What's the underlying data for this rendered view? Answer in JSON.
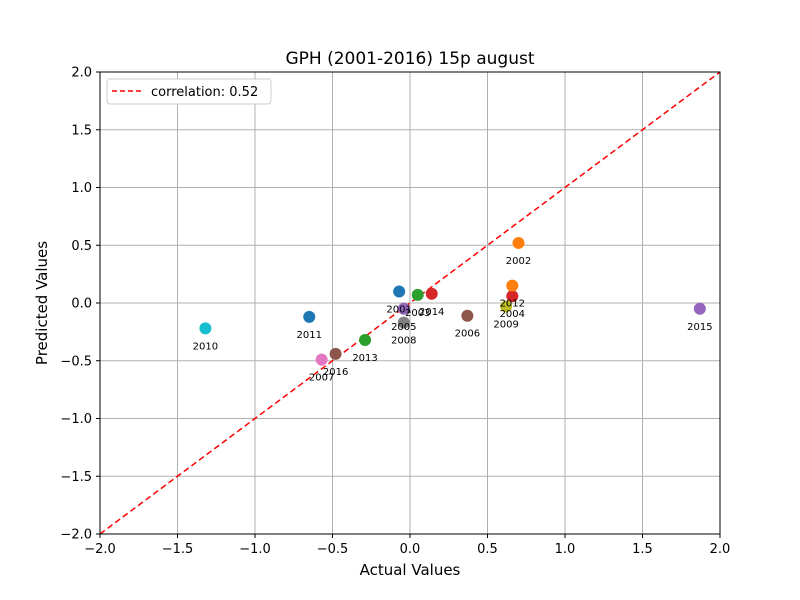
{
  "chart_data": {
    "type": "scatter",
    "title": "GPH (2001-2016) 15p august",
    "xlabel": "Actual Values",
    "ylabel": "Predicted Values",
    "xlim": [
      -2.0,
      2.0
    ],
    "ylim": [
      -2.0,
      2.0
    ],
    "xticks": [
      "−2.0",
      "−1.5",
      "−1.0",
      "−0.5",
      "0.0",
      "0.5",
      "1.0",
      "1.5",
      "2.0"
    ],
    "yticks": [
      "−2.0",
      "−1.5",
      "−1.0",
      "−0.5",
      "0.0",
      "0.5",
      "1.0",
      "1.5",
      "2.0"
    ],
    "grid": true,
    "legend": {
      "location": "upper-left",
      "entries": [
        "correlation: 0.52"
      ]
    },
    "reference_line": {
      "style": "dashed",
      "color": "#ff0000",
      "from": [
        -2.0,
        -2.0
      ],
      "to": [
        2.0,
        2.0
      ]
    },
    "points": [
      {
        "label": "2001",
        "x": -0.07,
        "y": 0.1,
        "color": "#1f77b4"
      },
      {
        "label": "2002",
        "x": 0.7,
        "y": 0.52,
        "color": "#ff7f0e"
      },
      {
        "label": "2003",
        "x": 0.05,
        "y": 0.07,
        "color": "#2ca02c"
      },
      {
        "label": "2004",
        "x": 0.66,
        "y": 0.06,
        "color": "#d62728"
      },
      {
        "label": "2005",
        "x": -0.04,
        "y": -0.05,
        "color": "#9467bd"
      },
      {
        "label": "2006",
        "x": 0.37,
        "y": -0.11,
        "color": "#8c564b"
      },
      {
        "label": "2007",
        "x": -0.57,
        "y": -0.49,
        "color": "#e377c2"
      },
      {
        "label": "2008",
        "x": -0.04,
        "y": -0.17,
        "color": "#7f7f7f"
      },
      {
        "label": "2009",
        "x": 0.62,
        "y": -0.03,
        "color": "#bcbd22"
      },
      {
        "label": "2010",
        "x": -1.32,
        "y": -0.22,
        "color": "#17becf"
      },
      {
        "label": "2011",
        "x": -0.65,
        "y": -0.12,
        "color": "#1f77b4"
      },
      {
        "label": "2012",
        "x": 0.66,
        "y": 0.15,
        "color": "#ff7f0e"
      },
      {
        "label": "2013",
        "x": -0.29,
        "y": -0.32,
        "color": "#2ca02c"
      },
      {
        "label": "2014",
        "x": 0.14,
        "y": 0.08,
        "color": "#d62728"
      },
      {
        "label": "2015",
        "x": 1.87,
        "y": -0.05,
        "color": "#9467bd"
      },
      {
        "label": "2016",
        "x": -0.48,
        "y": -0.44,
        "color": "#8c564b"
      }
    ]
  }
}
